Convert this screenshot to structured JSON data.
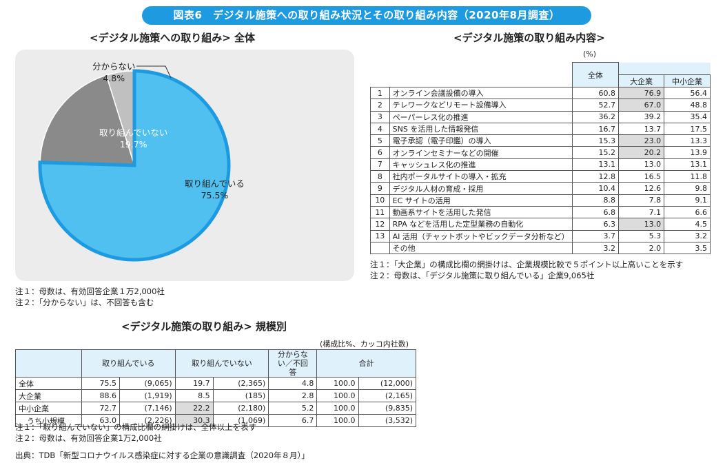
{
  "header": {
    "title": "図表6　デジタル施策への取り組み状況とその取り組み内容（2020年8月調査）"
  },
  "pie": {
    "section_title": "<デジタル施策への取り組み> 全体",
    "notes": [
      "注１：母数は、有効回答企業１万2,000社",
      "注２：「分からない」は、不回答も含む"
    ]
  },
  "content_table": {
    "section_title": "<デジタル施策の取り組み内容>",
    "unit": "(%)",
    "headers": {
      "overall": "全体",
      "large": "大企業",
      "sme": "中小企業"
    },
    "rows": [
      {
        "no": "1",
        "item": "オンライン会議設備の導入",
        "overall": "60.8",
        "large": "76.9",
        "sme": "56.4",
        "shade_large": true
      },
      {
        "no": "2",
        "item": "テレワークなどリモート設備導入",
        "overall": "52.7",
        "large": "67.0",
        "sme": "48.8",
        "shade_large": true
      },
      {
        "no": "3",
        "item": "ペーパーレス化の推進",
        "overall": "36.2",
        "large": "39.2",
        "sme": "35.4",
        "shade_large": false
      },
      {
        "no": "4",
        "item": "SNS を活用した情報発信",
        "overall": "16.7",
        "large": "13.7",
        "sme": "17.5",
        "shade_large": false
      },
      {
        "no": "5",
        "item": "電子承認（電子印鑑）の導入",
        "overall": "15.3",
        "large": "23.0",
        "sme": "13.3",
        "shade_large": true
      },
      {
        "no": "6",
        "item": "オンラインセミナーなどの開催",
        "overall": "15.2",
        "large": "20.2",
        "sme": "13.9",
        "shade_large": true
      },
      {
        "no": "7",
        "item": "キャッシュレス化の推進",
        "overall": "13.1",
        "large": "13.0",
        "sme": "13.1",
        "shade_large": false
      },
      {
        "no": "8",
        "item": "社内ポータルサイトの導入・拡充",
        "overall": "12.8",
        "large": "16.5",
        "sme": "11.8",
        "shade_large": false
      },
      {
        "no": "9",
        "item": "デジタル人材の育成・採用",
        "overall": "10.4",
        "large": "12.6",
        "sme": "9.8",
        "shade_large": false
      },
      {
        "no": "10",
        "item": "EC サイトの活用",
        "overall": "8.8",
        "large": "7.8",
        "sme": "9.1",
        "shade_large": false
      },
      {
        "no": "11",
        "item": "動画系サイトを活用した発信",
        "overall": "6.8",
        "large": "7.1",
        "sme": "6.6",
        "shade_large": false
      },
      {
        "no": "12",
        "item": "RPA などを活用した定型業務の自動化",
        "overall": "6.3",
        "large": "13.0",
        "sme": "4.5",
        "shade_large": true
      },
      {
        "no": "13",
        "item": "AI 活用（チャットボットやビックデータ分析など）",
        "overall": "3.7",
        "large": "5.3",
        "sme": "3.2",
        "shade_large": false
      },
      {
        "no": "",
        "item": "その他",
        "overall": "3.2",
        "large": "2.0",
        "sme": "3.5",
        "shade_large": false
      }
    ],
    "notes": [
      "注１：「大企業」の構成比欄の網掛けは、企業規模比較で５ポイント以上高いことを示す",
      "注２：母数は、「デジタル施策に取り組んでいる」企業9,065社"
    ]
  },
  "scale_table": {
    "section_title": "<デジタル施策の取り組み> 規模別",
    "unit": "(構成比%、カッコ内社数)",
    "headers": {
      "doing": "取り組んでいる",
      "not_doing": "取り組んでいない",
      "unknown": "分からない／不回答",
      "total": "合計"
    },
    "rows": [
      {
        "label": "全体",
        "doing": "75.5",
        "doing_n": "(9,065)",
        "not": "19.7",
        "not_n": "(2,365)",
        "unknown": "4.8",
        "total": "100.0",
        "total_n": "(12,000)",
        "shade_not": false,
        "indent": false
      },
      {
        "label": "大企業",
        "doing": "88.6",
        "doing_n": "(1,919)",
        "not": "8.5",
        "not_n": "(185)",
        "unknown": "2.8",
        "total": "100.0",
        "total_n": "(2,165)",
        "shade_not": false,
        "indent": false
      },
      {
        "label": "中小企業",
        "doing": "72.7",
        "doing_n": "(7,146)",
        "not": "22.2",
        "not_n": "(2,180)",
        "unknown": "5.2",
        "total": "100.0",
        "total_n": "(9,835)",
        "shade_not": true,
        "indent": false
      },
      {
        "label": "うち小規模",
        "doing": "63.0",
        "doing_n": "(2,226)",
        "not": "30.3",
        "not_n": "(1,069)",
        "unknown": "6.7",
        "total": "100.0",
        "total_n": "(3,532)",
        "shade_not": true,
        "indent": true
      }
    ],
    "notes": [
      "注１：「取り組んでいない」の構成比欄の網掛けは、全体以上を表す",
      "注２：母数は、有効回答企業1万2,000社"
    ]
  },
  "source": "出典：TDB「新型コロナウイルス感染症に対する企業の意識調査（2020年８月）」",
  "chart_data": {
    "type": "pie",
    "title": "",
    "slices": [
      {
        "label": "取り組んでいる",
        "value": 75.5,
        "value_label": "75.5%",
        "color": "#4fc0f0",
        "border": "#1e9be0"
      },
      {
        "label": "取り組んでいない",
        "value": 19.7,
        "value_label": "19.7%",
        "color": "#8a8a8a",
        "border": "#ffffff"
      },
      {
        "label": "分からない",
        "value": 4.8,
        "value_label": "4.8%",
        "color": "#c0c0c0",
        "border": "#ffffff"
      }
    ]
  }
}
